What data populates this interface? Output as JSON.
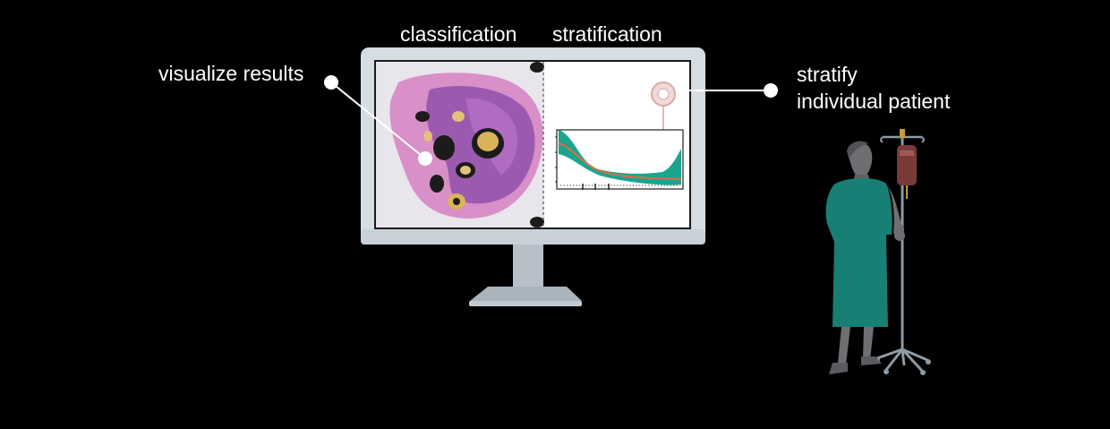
{
  "labels": {
    "classification": "classification",
    "stratification": "stratification",
    "visualize_results": "visualize results",
    "stratify_line1": "stratify",
    "stratify_line2": "individual patient"
  },
  "colors": {
    "background": "#000000",
    "text": "#ffffff",
    "monitor_frame": "#d6dde3",
    "monitor_stand": "#aab4bd",
    "tissue_pink": "#d98fc7",
    "tissue_purple": "#9b5ab0",
    "curve_fill": "#1aa58f",
    "curve_line": "#e06a4a",
    "gown": "#177f73",
    "patient_skin": "#6d6f73",
    "iv_bag": "#7a3a3a"
  },
  "icons": [
    "monitor-icon",
    "tissue-slide-icon",
    "survival-curve-icon",
    "tissue-core-icon",
    "patient-icon",
    "iv-stand-icon"
  ]
}
